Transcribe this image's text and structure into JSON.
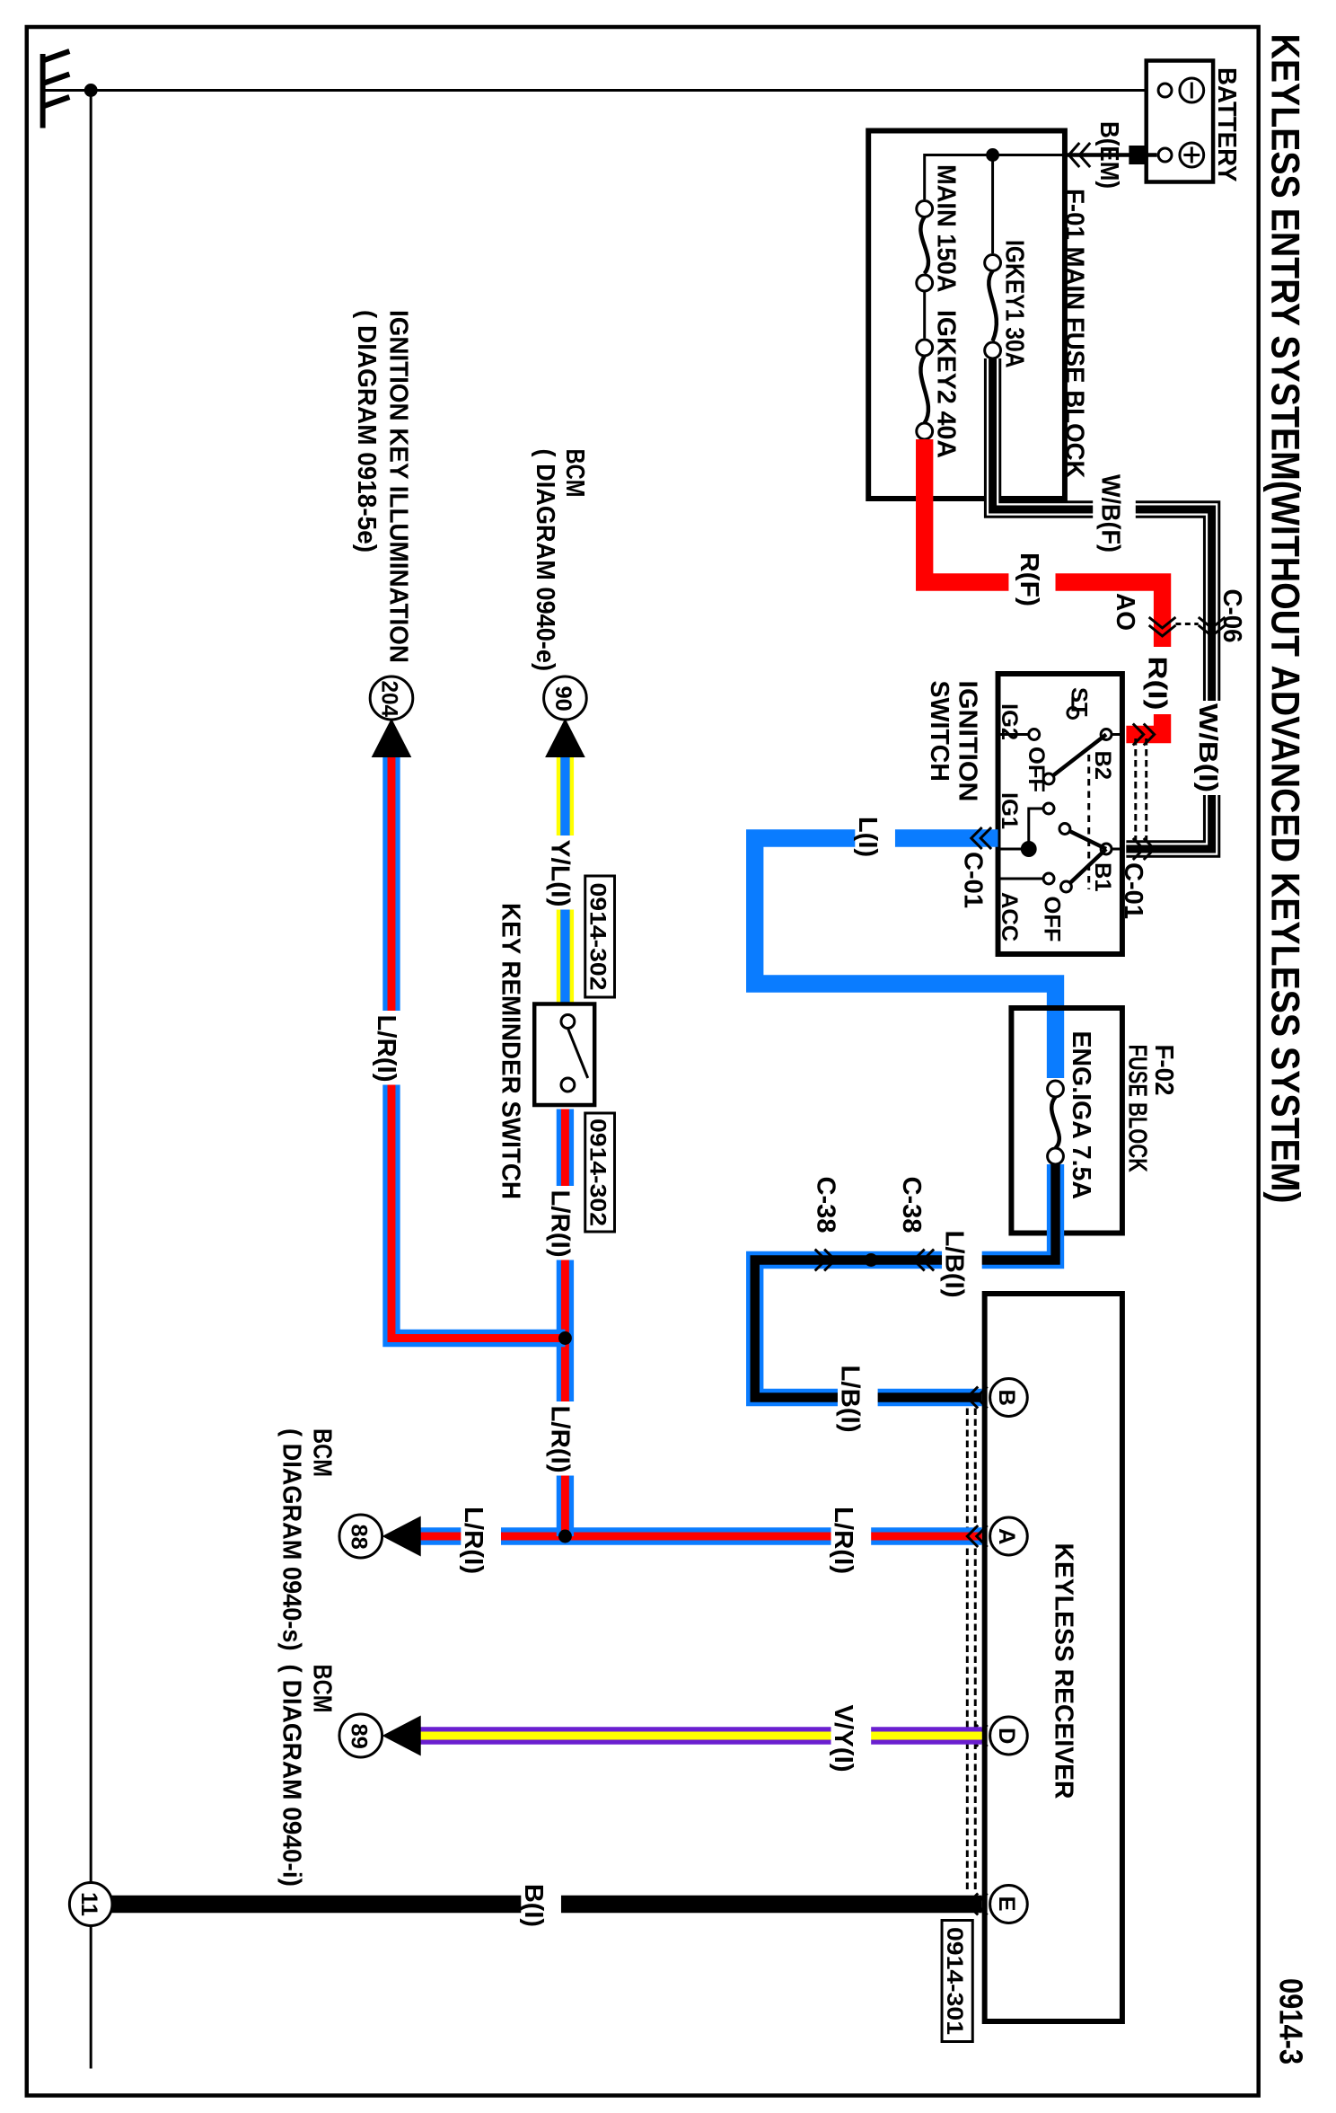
{
  "title": "KEYLESS ENTRY SYSTEM(WITHOUT ADVANCED KEYLESS SYSTEM)",
  "page_number": "0914-3",
  "colors": {
    "red": "#ff0000",
    "blue": "#0a7cff",
    "yellow": "#ffff00",
    "purple": "#6a1fd0",
    "black": "#000000"
  },
  "components": {
    "battery": "BATTERY",
    "battery_minus": "⊖",
    "battery_plus": "⊕",
    "main_fuse_block": "F-01  MAIN FUSE BLOCK",
    "fuse_igkey1": "IGKEY1 30A",
    "fuse_main": "MAIN 150A",
    "fuse_igkey2": "IGKEY2 40A",
    "ignition_switch_line1": "IGNITION",
    "ignition_switch_line2": "SWITCH",
    "fuse_block_f02_id": "F-02",
    "fuse_block_f02": "FUSE BLOCK",
    "fuse_eng_iga": "ENG.IGA 7.5A",
    "keyless_receiver": "KEYLESS RECEIVER",
    "key_reminder_switch": "KEY REMINDER SWITCH"
  },
  "switch_labels": {
    "st": "ST",
    "ig2": "IG2",
    "off1": "OFF",
    "b2": "B2",
    "ig1": "IG1",
    "b1": "B1",
    "off2": "OFF",
    "acc": "ACC"
  },
  "wires": {
    "b_em": "B(EM)",
    "wb_f": "W/B(F)",
    "wb_i": "W/B(I)",
    "r_f": "R(F)",
    "r_i": "R(I)",
    "l_i": "L(I)",
    "lb_i_1": "L/B(I)",
    "lb_i_2": "L/B(I)",
    "yl_i": "Y/L(I)",
    "lr_i_1": "L/R(I)",
    "lr_i_2": "L/R(I)",
    "lr_i_3": "L/R(I)",
    "lr_i_4": "L/R(I)",
    "lr_i_5": "L/R(I)",
    "vy_i": "V/Y(I)",
    "b_i": "B(I)"
  },
  "connectors": {
    "c06": "C-06",
    "ao": "AO",
    "c01_a": "C-01",
    "c01_b": "C-01",
    "c38_a": "C-38",
    "c38_b": "C-38"
  },
  "refs": {
    "ref_302_a": "0914-302",
    "ref_302_b": "0914-302",
    "ref_301": "0914-301"
  },
  "pins": {
    "b": "B",
    "a": "A",
    "d": "D",
    "e": "E"
  },
  "terminals": {
    "t204": "204",
    "t90": "90",
    "t88": "88",
    "t89": "89",
    "t11": "11"
  },
  "destinations": {
    "ign_key_illum_1": "IGNITION KEY ILLUMINATION",
    "ign_key_illum_2": "( DIAGRAM 0918-5e)",
    "bcm_e_1": "BCM",
    "bcm_e_2": "( DIAGRAM 0940-e)",
    "bcm_s_1": "BCM",
    "bcm_s_2": "( DIAGRAM 0940-s)",
    "bcm_i_1": "BCM",
    "bcm_i_2": "( DIAGRAM 0940-i)"
  }
}
